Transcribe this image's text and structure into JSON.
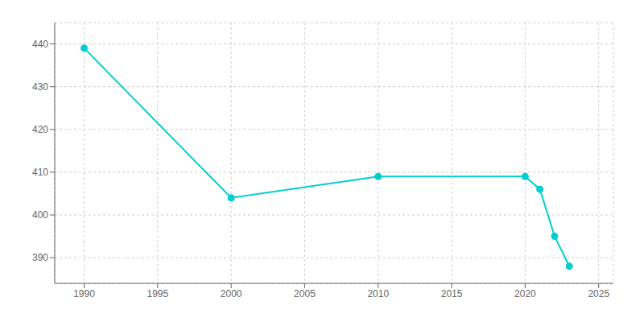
{
  "chart_data": {
    "type": "line",
    "x": [
      1990,
      2000,
      2010,
      2020,
      2021,
      2022,
      2023
    ],
    "values": [
      439,
      404,
      409,
      409,
      406,
      395,
      388
    ],
    "color": "#00CED1",
    "marker": "circle",
    "xlim": [
      1988,
      2026
    ],
    "ylim": [
      384,
      445
    ],
    "xticks": [
      1990,
      1995,
      2000,
      2005,
      2010,
      2015,
      2020,
      2025
    ],
    "yticks": [
      390,
      400,
      410,
      420,
      430,
      440
    ],
    "grid": true
  }
}
